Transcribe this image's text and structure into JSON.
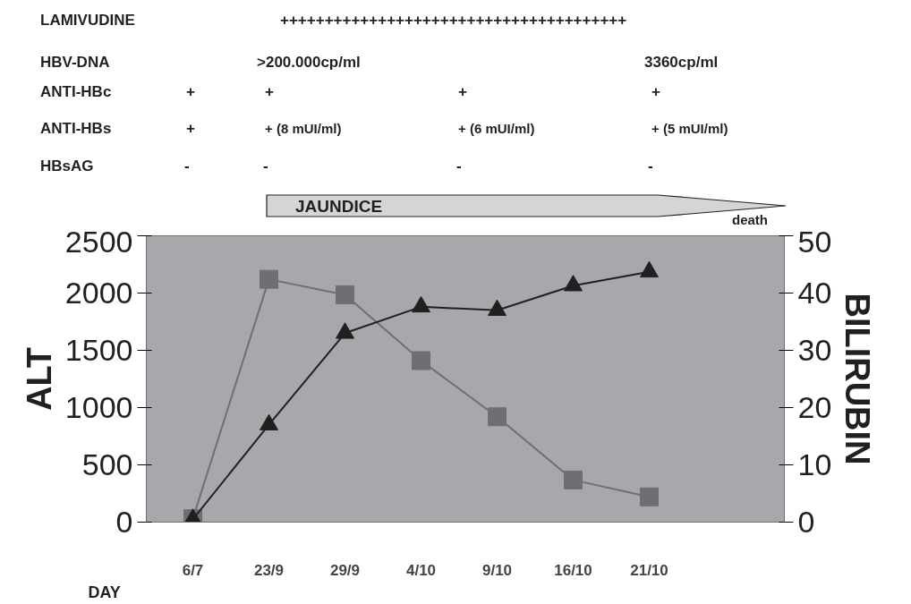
{
  "chart_data": {
    "type": "line",
    "categories": [
      "6/7",
      "23/9",
      "29/9",
      "4/10",
      "9/10",
      "16/10",
      "21/10"
    ],
    "xlabel": "DAY",
    "ylabel": "ALT",
    "y2label": "BILIRUBIN",
    "ylim": [
      0,
      2500
    ],
    "yticks": [
      0,
      500,
      1000,
      1500,
      2000,
      2500
    ],
    "y2lim": [
      0,
      50
    ],
    "y2ticks": [
      0,
      10,
      20,
      30,
      40,
      50
    ],
    "grid": false,
    "series": [
      {
        "color": "#6e6f73",
        "marker": "square",
        "values": [
          30,
          2120,
          1985,
          1410,
          920,
          368,
          220
        ]
      },
      {
        "color": "#231f20",
        "marker": "triangle",
        "axis": "y2",
        "values": [
          0.5,
          17,
          33,
          37.6,
          37,
          41.3,
          43.7
        ]
      }
    ],
    "annotations": [
      "LAMIVUDINE",
      "+++++++++++++++++++++++++++++++++++++++",
      "HBV-DNA",
      ">200.000cp/ml",
      "3360cp/ml",
      "ANTI-HBc",
      "+",
      "+",
      "+",
      "+",
      "ANTI-HBs",
      "+",
      "+ (8 mUI/ml)",
      "+ (6 mUI/ml)",
      "+ (5 mUI/ml)",
      "HBsAG",
      "-",
      "-",
      "-",
      "-",
      "JAUNDICE",
      "death"
    ]
  }
}
